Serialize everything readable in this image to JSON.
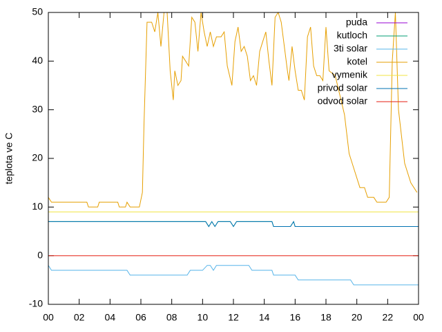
{
  "chart_data": {
    "type": "line",
    "ylabel": "teplota ve C",
    "xlim": [
      0,
      24
    ],
    "ylim": [
      -10,
      50
    ],
    "xticks": [
      {
        "value": 0,
        "label": "00"
      },
      {
        "value": 2,
        "label": "02"
      },
      {
        "value": 4,
        "label": "04"
      },
      {
        "value": 6,
        "label": "06"
      },
      {
        "value": 8,
        "label": "08"
      },
      10,
      12,
      14,
      16,
      18,
      20,
      22,
      {
        "value": 24,
        "label": "00"
      }
    ],
    "yticks": [
      -10,
      0,
      10,
      20,
      30,
      40,
      50
    ],
    "legend": "top-right",
    "series": [
      {
        "name": "puda",
        "color": "#9400d3",
        "x": [
          0,
          24
        ],
        "values": [
          null,
          null
        ]
      },
      {
        "name": "kutloch",
        "color": "#009e73",
        "x": [
          0,
          10.2,
          10.4,
          10.6,
          10.8,
          11,
          11.8,
          12,
          12.2,
          14.5,
          14.6,
          15.7,
          15.9,
          16,
          24
        ],
        "values": [
          7,
          7,
          6,
          7,
          6,
          7,
          7,
          6,
          7,
          7,
          6,
          6,
          7,
          6,
          6
        ]
      },
      {
        "name": "3ti solar",
        "color": "#56b4e9",
        "x": [
          0,
          0.2,
          5.1,
          5.3,
          9,
          9.2,
          10,
          10.3,
          10.5,
          10.7,
          10.9,
          13,
          13.2,
          14.5,
          14.6,
          16,
          16.2,
          19.6,
          19.8,
          24
        ],
        "values": [
          -2,
          -3,
          -3,
          -4,
          -4,
          -3,
          -3,
          -2,
          -2,
          -3,
          -2,
          -2,
          -3,
          -3,
          -4,
          -4,
          -5,
          -5,
          -6,
          -6
        ]
      },
      {
        "name": "kotel",
        "color": "#e69f00",
        "x": [
          0,
          0.2,
          2.5,
          2.6,
          3.2,
          3.3,
          4.5,
          4.6,
          5,
          5.1,
          5.3,
          5.9,
          6.1,
          6.2,
          6.4,
          6.7,
          6.9,
          7.1,
          7.3,
          7.5,
          7.7,
          7.9,
          8.1,
          8.2,
          8.4,
          8.6,
          8.7,
          8.9,
          9.1,
          9.3,
          9.5,
          9.7,
          9.9,
          10.1,
          10.3,
          10.5,
          10.7,
          10.9,
          11.2,
          11.4,
          11.6,
          11.9,
          12.1,
          12.3,
          12.5,
          12.7,
          12.9,
          13.1,
          13.3,
          13.5,
          13.7,
          13.9,
          14.1,
          14.3,
          14.5,
          14.7,
          14.9,
          15.1,
          15.3,
          15.5,
          15.6,
          15.8,
          16,
          16.2,
          16.4,
          16.6,
          16.8,
          17,
          17.2,
          17.4,
          17.6,
          17.8,
          18,
          18.2,
          18.6,
          18.9,
          19.2,
          19.5,
          19.8,
          20.2,
          20.5,
          20.7,
          21.1,
          21.3,
          21.9,
          22.1,
          22.3,
          22.5,
          22.7,
          23.1,
          23.5,
          23.9
        ],
        "values": [
          12,
          11,
          11,
          10,
          10,
          11,
          11,
          10,
          10,
          11,
          10,
          10,
          13,
          27,
          48,
          48,
          46,
          50,
          43,
          50,
          50,
          38,
          32,
          38,
          35,
          36,
          41,
          40,
          39,
          49,
          48,
          42,
          50,
          46,
          43,
          46,
          43,
          45,
          45,
          46,
          39,
          35,
          44,
          47,
          42,
          43,
          41,
          36,
          37,
          35,
          42,
          44,
          46,
          40,
          35,
          49,
          50,
          48,
          43,
          38,
          36,
          43,
          38,
          34,
          34,
          32,
          45,
          47,
          39,
          37,
          37,
          36,
          47,
          38,
          37,
          33,
          29,
          21,
          18,
          14,
          14,
          12,
          12,
          11,
          11,
          12,
          40,
          50,
          30,
          19,
          15,
          13
        ]
      },
      {
        "name": "vymenik",
        "color": "#f0e442",
        "x": [
          0,
          24
        ],
        "values": [
          9,
          9
        ]
      },
      {
        "name": "privod solar",
        "color": "#0072b2",
        "x": [
          0,
          10.2,
          10.4,
          10.6,
          10.8,
          11,
          11.8,
          12,
          12.2,
          14.5,
          14.6,
          15.7,
          15.9,
          16,
          24
        ],
        "values": [
          7,
          7,
          6,
          7,
          6,
          7,
          7,
          6,
          7,
          7,
          6,
          6,
          7,
          6,
          6
        ]
      },
      {
        "name": "odvod solar",
        "color": "#e51e10",
        "x": [
          0,
          24
        ],
        "values": [
          0,
          0
        ]
      }
    ]
  }
}
